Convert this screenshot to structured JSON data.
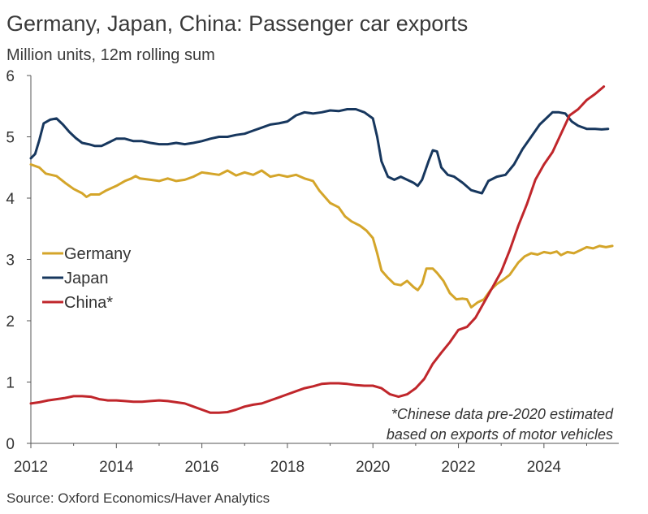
{
  "chart_data": {
    "type": "line",
    "title": "Germany, Japan, China: Passenger car exports",
    "subtitle": "Million units, 12m rolling sum",
    "source": "Source: Oxford Economics/Haver Analytics",
    "note": [
      "*Chinese data pre-2020 estimated",
      "based on exports of motor vehicles"
    ],
    "xlim": [
      2012,
      2025.75
    ],
    "ylim": [
      0,
      6
    ],
    "x_ticks": [
      2012,
      2014,
      2016,
      2018,
      2020,
      2022,
      2024
    ],
    "x_tick_labels": [
      "2012",
      "2014",
      "2016",
      "2018",
      "2020",
      "2022",
      "2024"
    ],
    "y_ticks": [
      0,
      1,
      2,
      3,
      4,
      5,
      6
    ],
    "y_tick_labels": [
      "0",
      "1",
      "2",
      "3",
      "4",
      "5",
      "6"
    ],
    "legend_position": "left",
    "series": [
      {
        "name": "Germany",
        "color": "#d4a52a",
        "points": [
          [
            2012.0,
            4.55
          ],
          [
            2012.2,
            4.5
          ],
          [
            2012.35,
            4.4
          ],
          [
            2012.6,
            4.36
          ],
          [
            2012.8,
            4.25
          ],
          [
            2013.0,
            4.15
          ],
          [
            2013.2,
            4.08
          ],
          [
            2013.3,
            4.02
          ],
          [
            2013.4,
            4.06
          ],
          [
            2013.6,
            4.06
          ],
          [
            2013.75,
            4.12
          ],
          [
            2014.0,
            4.2
          ],
          [
            2014.2,
            4.28
          ],
          [
            2014.35,
            4.32
          ],
          [
            2014.45,
            4.36
          ],
          [
            2014.55,
            4.32
          ],
          [
            2014.8,
            4.3
          ],
          [
            2015.0,
            4.28
          ],
          [
            2015.2,
            4.32
          ],
          [
            2015.4,
            4.28
          ],
          [
            2015.6,
            4.3
          ],
          [
            2015.8,
            4.35
          ],
          [
            2016.0,
            4.42
          ],
          [
            2016.2,
            4.4
          ],
          [
            2016.4,
            4.38
          ],
          [
            2016.6,
            4.45
          ],
          [
            2016.8,
            4.37
          ],
          [
            2017.0,
            4.42
          ],
          [
            2017.2,
            4.38
          ],
          [
            2017.4,
            4.45
          ],
          [
            2017.6,
            4.35
          ],
          [
            2017.8,
            4.38
          ],
          [
            2018.0,
            4.35
          ],
          [
            2018.2,
            4.38
          ],
          [
            2018.4,
            4.32
          ],
          [
            2018.6,
            4.28
          ],
          [
            2018.75,
            4.12
          ],
          [
            2019.0,
            3.92
          ],
          [
            2019.2,
            3.85
          ],
          [
            2019.35,
            3.7
          ],
          [
            2019.5,
            3.62
          ],
          [
            2019.7,
            3.55
          ],
          [
            2019.85,
            3.47
          ],
          [
            2020.0,
            3.35
          ],
          [
            2020.1,
            3.1
          ],
          [
            2020.2,
            2.82
          ],
          [
            2020.35,
            2.7
          ],
          [
            2020.5,
            2.6
          ],
          [
            2020.65,
            2.58
          ],
          [
            2020.8,
            2.65
          ],
          [
            2020.95,
            2.55
          ],
          [
            2021.05,
            2.5
          ],
          [
            2021.15,
            2.6
          ],
          [
            2021.25,
            2.85
          ],
          [
            2021.4,
            2.85
          ],
          [
            2021.5,
            2.78
          ],
          [
            2021.65,
            2.65
          ],
          [
            2021.8,
            2.45
          ],
          [
            2021.95,
            2.35
          ],
          [
            2022.1,
            2.36
          ],
          [
            2022.2,
            2.35
          ],
          [
            2022.3,
            2.22
          ],
          [
            2022.45,
            2.3
          ],
          [
            2022.6,
            2.35
          ],
          [
            2022.75,
            2.5
          ],
          [
            2022.9,
            2.6
          ],
          [
            2023.05,
            2.67
          ],
          [
            2023.2,
            2.75
          ],
          [
            2023.4,
            2.95
          ],
          [
            2023.55,
            3.05
          ],
          [
            2023.7,
            3.1
          ],
          [
            2023.85,
            3.08
          ],
          [
            2024.0,
            3.12
          ],
          [
            2024.15,
            3.1
          ],
          [
            2024.3,
            3.13
          ],
          [
            2024.4,
            3.07
          ],
          [
            2024.55,
            3.12
          ],
          [
            2024.7,
            3.1
          ],
          [
            2024.85,
            3.15
          ],
          [
            2025.0,
            3.2
          ],
          [
            2025.15,
            3.18
          ],
          [
            2025.3,
            3.22
          ],
          [
            2025.45,
            3.2
          ],
          [
            2025.6,
            3.22
          ]
        ]
      },
      {
        "name": "Japan",
        "color": "#17375e",
        "points": [
          [
            2012.0,
            4.65
          ],
          [
            2012.1,
            4.72
          ],
          [
            2012.2,
            4.95
          ],
          [
            2012.3,
            5.22
          ],
          [
            2012.45,
            5.28
          ],
          [
            2012.6,
            5.3
          ],
          [
            2012.75,
            5.2
          ],
          [
            2012.9,
            5.08
          ],
          [
            2013.05,
            4.98
          ],
          [
            2013.2,
            4.9
          ],
          [
            2013.35,
            4.88
          ],
          [
            2013.5,
            4.85
          ],
          [
            2013.65,
            4.85
          ],
          [
            2013.8,
            4.9
          ],
          [
            2014.0,
            4.97
          ],
          [
            2014.2,
            4.97
          ],
          [
            2014.4,
            4.93
          ],
          [
            2014.6,
            4.93
          ],
          [
            2014.8,
            4.9
          ],
          [
            2015.0,
            4.88
          ],
          [
            2015.2,
            4.88
          ],
          [
            2015.4,
            4.9
          ],
          [
            2015.6,
            4.88
          ],
          [
            2015.8,
            4.9
          ],
          [
            2016.0,
            4.93
          ],
          [
            2016.2,
            4.97
          ],
          [
            2016.4,
            5.0
          ],
          [
            2016.6,
            5.0
          ],
          [
            2016.8,
            5.03
          ],
          [
            2017.0,
            5.05
          ],
          [
            2017.2,
            5.1
          ],
          [
            2017.4,
            5.15
          ],
          [
            2017.6,
            5.2
          ],
          [
            2017.8,
            5.22
          ],
          [
            2018.0,
            5.25
          ],
          [
            2018.2,
            5.35
          ],
          [
            2018.4,
            5.4
          ],
          [
            2018.6,
            5.38
          ],
          [
            2018.8,
            5.4
          ],
          [
            2019.0,
            5.43
          ],
          [
            2019.2,
            5.42
          ],
          [
            2019.4,
            5.45
          ],
          [
            2019.6,
            5.45
          ],
          [
            2019.8,
            5.4
          ],
          [
            2020.0,
            5.3
          ],
          [
            2020.1,
            5.0
          ],
          [
            2020.2,
            4.6
          ],
          [
            2020.35,
            4.35
          ],
          [
            2020.5,
            4.3
          ],
          [
            2020.65,
            4.35
          ],
          [
            2020.8,
            4.3
          ],
          [
            2020.95,
            4.25
          ],
          [
            2021.05,
            4.2
          ],
          [
            2021.15,
            4.3
          ],
          [
            2021.3,
            4.6
          ],
          [
            2021.4,
            4.78
          ],
          [
            2021.5,
            4.76
          ],
          [
            2021.6,
            4.5
          ],
          [
            2021.75,
            4.38
          ],
          [
            2021.9,
            4.35
          ],
          [
            2022.1,
            4.25
          ],
          [
            2022.3,
            4.13
          ],
          [
            2022.45,
            4.1
          ],
          [
            2022.55,
            4.08
          ],
          [
            2022.7,
            4.28
          ],
          [
            2022.9,
            4.35
          ],
          [
            2023.1,
            4.38
          ],
          [
            2023.3,
            4.55
          ],
          [
            2023.5,
            4.8
          ],
          [
            2023.7,
            5.0
          ],
          [
            2023.9,
            5.2
          ],
          [
            2024.05,
            5.3
          ],
          [
            2024.2,
            5.4
          ],
          [
            2024.35,
            5.4
          ],
          [
            2024.5,
            5.38
          ],
          [
            2024.65,
            5.25
          ],
          [
            2024.8,
            5.18
          ],
          [
            2025.0,
            5.13
          ],
          [
            2025.2,
            5.13
          ],
          [
            2025.35,
            5.12
          ],
          [
            2025.5,
            5.13
          ]
        ]
      },
      {
        "name": "China*",
        "color": "#c0262b",
        "points": [
          [
            2012.0,
            0.65
          ],
          [
            2012.2,
            0.67
          ],
          [
            2012.4,
            0.7
          ],
          [
            2012.6,
            0.72
          ],
          [
            2012.8,
            0.74
          ],
          [
            2013.0,
            0.77
          ],
          [
            2013.2,
            0.77
          ],
          [
            2013.4,
            0.76
          ],
          [
            2013.6,
            0.72
          ],
          [
            2013.8,
            0.7
          ],
          [
            2014.0,
            0.7
          ],
          [
            2014.2,
            0.69
          ],
          [
            2014.4,
            0.68
          ],
          [
            2014.6,
            0.68
          ],
          [
            2014.8,
            0.69
          ],
          [
            2015.0,
            0.7
          ],
          [
            2015.2,
            0.69
          ],
          [
            2015.4,
            0.67
          ],
          [
            2015.6,
            0.65
          ],
          [
            2015.8,
            0.6
          ],
          [
            2016.0,
            0.55
          ],
          [
            2016.2,
            0.5
          ],
          [
            2016.4,
            0.5
          ],
          [
            2016.6,
            0.51
          ],
          [
            2016.8,
            0.55
          ],
          [
            2017.0,
            0.6
          ],
          [
            2017.2,
            0.63
          ],
          [
            2017.4,
            0.65
          ],
          [
            2017.6,
            0.7
          ],
          [
            2017.8,
            0.75
          ],
          [
            2018.0,
            0.8
          ],
          [
            2018.2,
            0.85
          ],
          [
            2018.4,
            0.9
          ],
          [
            2018.6,
            0.93
          ],
          [
            2018.8,
            0.97
          ],
          [
            2019.0,
            0.98
          ],
          [
            2019.2,
            0.98
          ],
          [
            2019.4,
            0.97
          ],
          [
            2019.6,
            0.95
          ],
          [
            2019.8,
            0.94
          ],
          [
            2020.0,
            0.94
          ],
          [
            2020.2,
            0.9
          ],
          [
            2020.4,
            0.8
          ],
          [
            2020.6,
            0.76
          ],
          [
            2020.8,
            0.8
          ],
          [
            2021.0,
            0.9
          ],
          [
            2021.2,
            1.05
          ],
          [
            2021.4,
            1.3
          ],
          [
            2021.6,
            1.48
          ],
          [
            2021.8,
            1.65
          ],
          [
            2022.0,
            1.85
          ],
          [
            2022.2,
            1.9
          ],
          [
            2022.4,
            2.05
          ],
          [
            2022.6,
            2.3
          ],
          [
            2022.8,
            2.55
          ],
          [
            2023.0,
            2.8
          ],
          [
            2023.2,
            3.15
          ],
          [
            2023.4,
            3.55
          ],
          [
            2023.6,
            3.9
          ],
          [
            2023.8,
            4.3
          ],
          [
            2024.0,
            4.55
          ],
          [
            2024.2,
            4.75
          ],
          [
            2024.4,
            5.05
          ],
          [
            2024.6,
            5.35
          ],
          [
            2024.8,
            5.45
          ],
          [
            2025.0,
            5.6
          ],
          [
            2025.2,
            5.7
          ],
          [
            2025.4,
            5.82
          ]
        ]
      }
    ]
  }
}
